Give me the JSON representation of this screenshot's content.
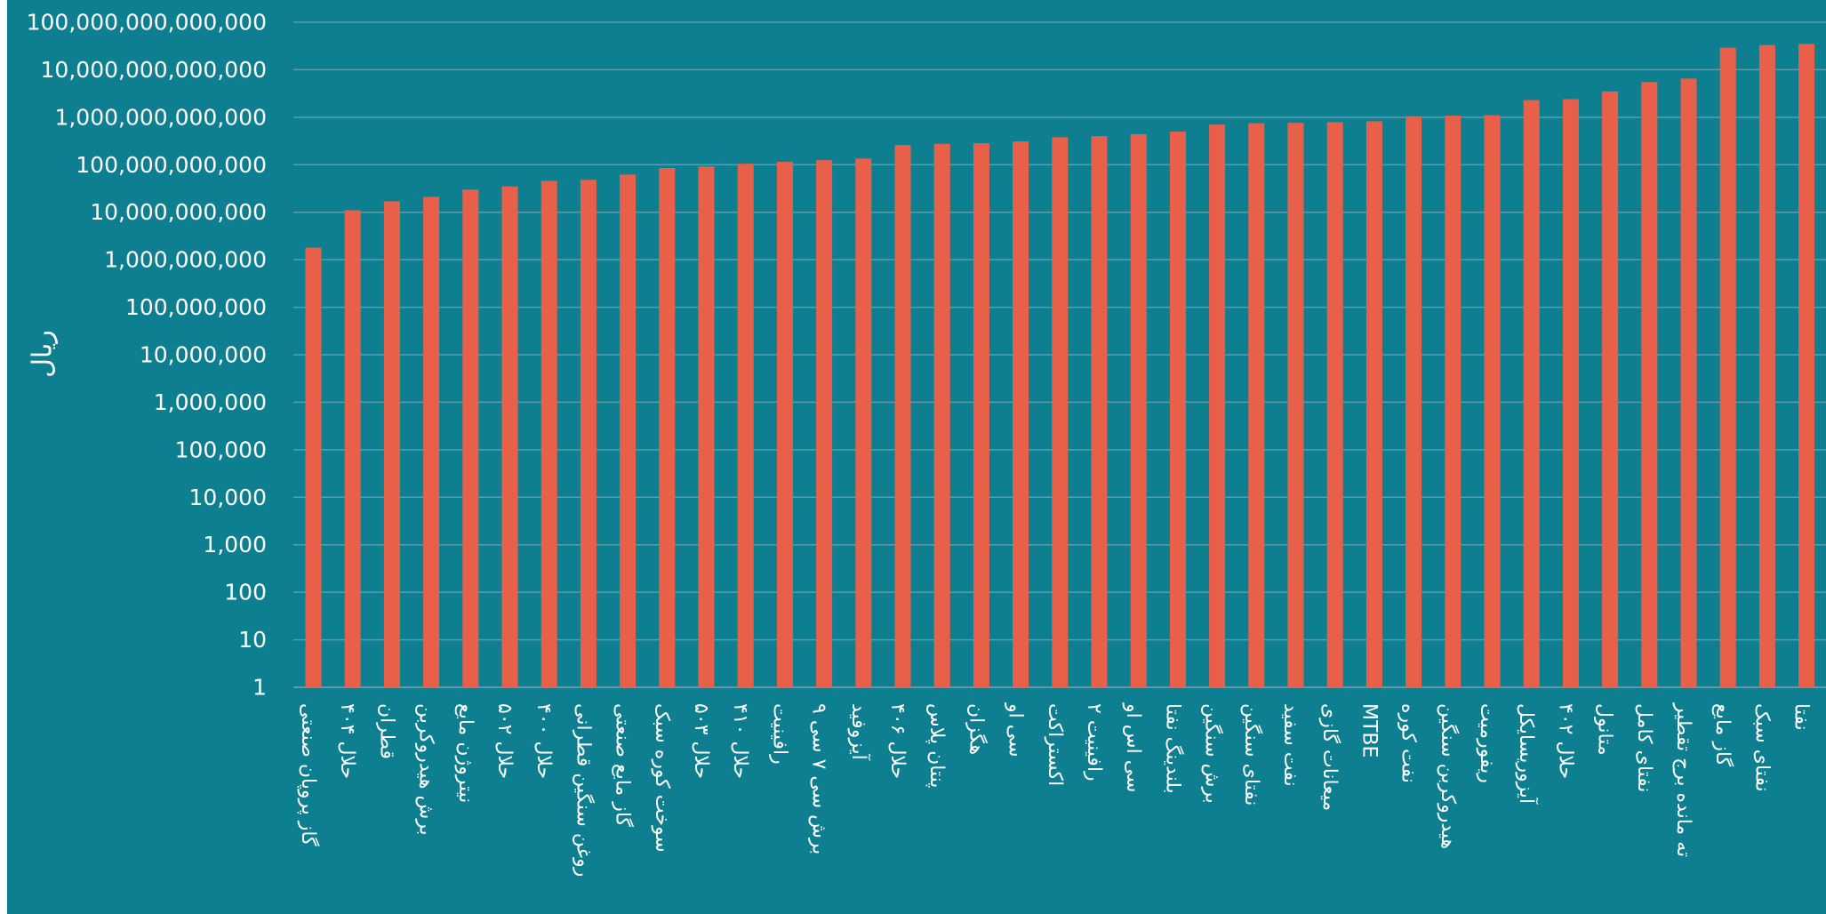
{
  "colors": {
    "background": "#0E7F91",
    "bar": "#E8604A",
    "grid": "#5A9DA9",
    "text": "#FFFFFF"
  },
  "chart_data": {
    "type": "bar",
    "title": "",
    "xlabel": "",
    "ylabel": "ریال",
    "yscale": "log",
    "ylim": [
      1,
      100000000000000
    ],
    "grid": true,
    "legend": "none",
    "yticks": [
      "1",
      "10",
      "100",
      "1,000",
      "10,000",
      "100,000",
      "1,000,000",
      "10,000,000",
      "100,000,000",
      "1,000,000,000",
      "10,000,000,000",
      "100,000,000,000",
      "1,000,000,000,000",
      "10,000,000,000,000",
      "100,000,000,000,000"
    ],
    "categories": [
      "گاز پروپان صنعتی",
      "حلال ۴۰۴",
      "قطران",
      "برش هیدروکربن",
      "نیتروژن مایع",
      "حلال ۵۰۲",
      "حلال ۴۰۰",
      "روغن سنگین قطرانی",
      "گاز مایع صنعتی",
      "سوخت کوره سبک",
      "حلال ۵۰۳",
      "حلال ۴۱۰",
      "رافینیت",
      "برش سی ۷ سی ۹",
      "آیزوفید",
      "حلال ۴۰۶",
      "پنتان پلاس",
      "هگزان",
      "سی او",
      "اکستراکت",
      "رافینیت ۲",
      "سی اس او",
      "بلندینگ نفتا",
      "برش سنگین",
      "نفتای سنگین",
      "نفت سفید",
      "میعانات گازی",
      "MTBE",
      "نفت کوره",
      "هیدروکربن سنگین",
      "ریفورمیت",
      "آیزوریسایکل",
      "حلال ۴۰۲",
      "متانول",
      "نفتای کامل",
      "ته مانده برج تقطیر",
      "گاز مایع",
      "نفتای سبک",
      "نفتا"
    ],
    "values": [
      1800000000,
      11000000000,
      17000000000,
      21000000000,
      30000000000,
      35000000000,
      46000000000,
      48000000000,
      62000000000,
      85000000000,
      92000000000,
      105000000000,
      115000000000,
      125000000000,
      135000000000,
      260000000000,
      275000000000,
      285000000000,
      310000000000,
      380000000000,
      400000000000,
      440000000000,
      500000000000,
      700000000000,
      750000000000,
      760000000000,
      790000000000,
      820000000000,
      1050000000000,
      1080000000000,
      1100000000000,
      2300000000000,
      2400000000000,
      3500000000000,
      5500000000000,
      6500000000000,
      29000000000000,
      33000000000000,
      35000000000000
    ]
  }
}
